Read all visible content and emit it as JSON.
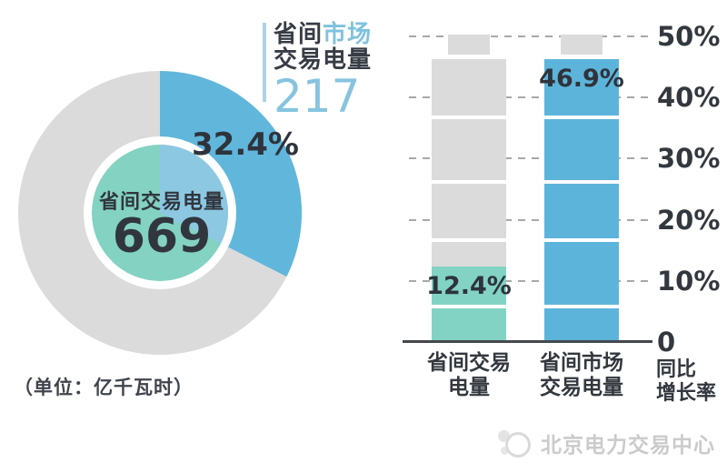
{
  "unit_note": "（单位：亿千瓦时）",
  "donut": {
    "callout": {
      "prefix": "省间",
      "highlight": "市场",
      "line2": "交易电量",
      "value": "217"
    },
    "percent_label": "32.4%",
    "center_title": "省间交易电量",
    "center_value": "669"
  },
  "bar_chart": {
    "value_labels": [
      "12.4%",
      "46.9%"
    ],
    "categories_lines": [
      [
        "省间交易",
        "电量"
      ],
      [
        "省间市场",
        "交易电量"
      ]
    ],
    "y_tick_labels": [
      "50%",
      "40%",
      "30%",
      "20%",
      "10%",
      "0"
    ],
    "y_axis_title_lines": [
      "同比",
      "增长率"
    ]
  },
  "watermark": {
    "text": "北京电力交易中心"
  },
  "colors": {
    "donut_blue": "#61b6db",
    "donut_gray": "#dbdbdc",
    "inner_pie_teal": "#83d2c2",
    "inner_pie_blue": "#8dc8e2",
    "bar_teal": "#82d3c3",
    "bar_blue": "#5db4da",
    "bar_gray": "#dbdbdc",
    "accent_text_blue": "#86c4e0",
    "dark_text": "#2f343d",
    "callout_line": "#b2d1e2",
    "gridline": "#a8a8a8",
    "axis": "#44484e",
    "watermark_gray": "#cbcbcb"
  },
  "chart_data": [
    {
      "type": "pie",
      "subtype": "donut-with-inner-pie",
      "center_label": "省间交易电量",
      "center_value": 669,
      "unit": "亿千瓦时",
      "slices": [
        {
          "label": "省间市场交易电量",
          "value": 217,
          "percent": 32.4,
          "color": "#61b6db"
        },
        {
          "percent": 67.6,
          "color": "#dbdbdc"
        }
      ],
      "inner_ring_colors": {
        "highlight": "#8dc8e2",
        "rest": "#83d2c2"
      },
      "start_angle": "top",
      "direction": "clockwise"
    },
    {
      "type": "bar",
      "categories": [
        "省间交易电量",
        "省间市场交易电量"
      ],
      "values": [
        12.4,
        46.9
      ],
      "value_unit": "%",
      "colors": [
        "#82d3c3",
        "#5db4da"
      ],
      "ylabel": "同比增长率",
      "ylim": [
        0,
        50
      ],
      "yticks": [
        0,
        10,
        20,
        30,
        40,
        50
      ],
      "grid": "dashed-horizontal",
      "tick_side": "right",
      "legend": "none"
    }
  ]
}
